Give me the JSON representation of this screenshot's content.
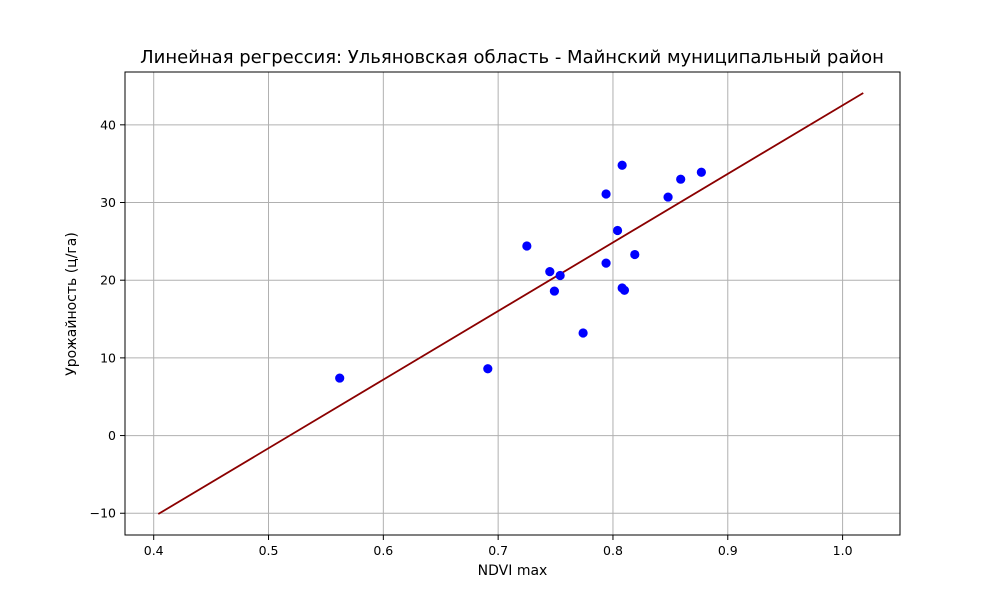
{
  "chart_data": {
    "type": "scatter",
    "title": "Линейная регрессия: Ульяновская область - Майнский муниципальный район",
    "xlabel": "NDVI max",
    "ylabel": "Урожайность (ц/га)",
    "xlim": [
      0.375,
      1.05
    ],
    "ylim": [
      -12.8,
      46.8
    ],
    "x_ticks": [
      0.4,
      0.5,
      0.6,
      0.7,
      0.8,
      0.9,
      1.0
    ],
    "y_ticks": [
      -10,
      0,
      10,
      20,
      30,
      40
    ],
    "x_tick_labels": [
      "0.4",
      "0.5",
      "0.6",
      "0.7",
      "0.8",
      "0.9",
      "1.0"
    ],
    "y_tick_labels": [
      "−10",
      "0",
      "10",
      "20",
      "30",
      "40"
    ],
    "grid": true,
    "series": [
      {
        "kind": "points",
        "color": "#0000ff",
        "points": [
          {
            "x": 0.562,
            "y": 7.4
          },
          {
            "x": 0.691,
            "y": 8.6
          },
          {
            "x": 0.725,
            "y": 24.4
          },
          {
            "x": 0.745,
            "y": 21.1
          },
          {
            "x": 0.749,
            "y": 18.6
          },
          {
            "x": 0.754,
            "y": 20.6
          },
          {
            "x": 0.774,
            "y": 13.2
          },
          {
            "x": 0.794,
            "y": 22.2
          },
          {
            "x": 0.794,
            "y": 31.1
          },
          {
            "x": 0.804,
            "y": 26.4
          },
          {
            "x": 0.808,
            "y": 34.8
          },
          {
            "x": 0.808,
            "y": 19.0
          },
          {
            "x": 0.81,
            "y": 18.7
          },
          {
            "x": 0.819,
            "y": 23.3
          },
          {
            "x": 0.848,
            "y": 30.7
          },
          {
            "x": 0.859,
            "y": 33.0
          },
          {
            "x": 0.877,
            "y": 33.9
          }
        ]
      },
      {
        "kind": "regression-line",
        "color": "#8b0000",
        "start": {
          "x": 0.404,
          "y": -10.1
        },
        "end": {
          "x": 1.018,
          "y": 44.1
        }
      }
    ]
  }
}
